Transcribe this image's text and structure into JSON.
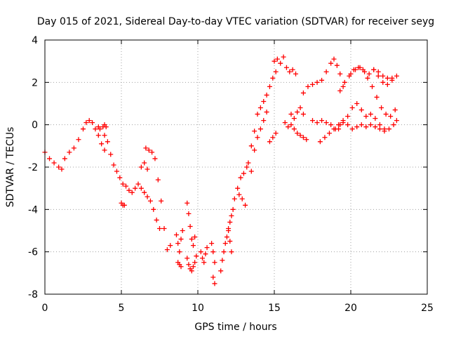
{
  "chart_data": {
    "type": "scatter",
    "title": "Day 015 of 2021, Sidereal Day-to-day VTEC variation (SDTVAR) for receiver seyg",
    "xlabel": "GPS time / hours",
    "ylabel": "SDTVAR / TECUs",
    "xlim": [
      0,
      25
    ],
    "ylim": [
      -8,
      4
    ],
    "xticks": [
      "0",
      "5",
      "10",
      "15",
      "20",
      "25"
    ],
    "yticks": [
      "-8",
      "-6",
      "-4",
      "-2",
      "0",
      "2",
      "4"
    ],
    "grid": true,
    "marker": "plus",
    "color": "#ff0000",
    "series": [
      {
        "x": [
          0.0,
          0.3,
          0.6,
          0.9,
          1.1,
          1.3,
          1.6,
          1.9,
          2.2,
          2.5,
          2.7,
          2.9,
          3.1,
          3.3,
          3.5,
          3.7,
          3.9
        ],
        "y": [
          -1.3,
          -1.6,
          -1.8,
          -2.0,
          -2.1,
          -1.6,
          -1.3,
          -1.1,
          -0.7,
          -0.2,
          0.1,
          0.2,
          0.1,
          -0.2,
          -0.5,
          -0.9,
          -1.2
        ]
      },
      {
        "x": [
          3.5,
          3.6,
          3.8,
          3.9,
          4.0
        ],
        "y": [
          -0.1,
          -0.2,
          -0.1,
          0.0,
          -0.1
        ]
      },
      {
        "x": [
          3.9,
          4.1,
          4.3,
          4.5,
          4.7,
          4.9,
          5.1,
          5.3,
          5.5,
          5.7,
          5.9,
          6.1,
          6.3,
          6.5,
          6.7,
          6.9,
          7.1,
          7.3,
          7.5
        ],
        "y": [
          -0.5,
          -0.8,
          -1.4,
          -1.9,
          -2.2,
          -2.5,
          -2.8,
          -2.9,
          -3.1,
          -3.2,
          -3.0,
          -2.8,
          -3.0,
          -3.2,
          -3.4,
          -3.6,
          -4.0,
          -4.5,
          -4.9
        ]
      },
      {
        "x": [
          5.0,
          5.1,
          5.2
        ],
        "y": [
          -3.7,
          -3.8,
          -3.8
        ]
      },
      {
        "x": [
          6.6,
          6.8,
          7.0,
          7.2,
          7.4,
          7.6
        ],
        "y": [
          -1.1,
          -1.2,
          -1.3,
          -1.6,
          -2.6,
          -3.6
        ]
      },
      {
        "x": [
          6.3,
          6.5,
          6.7
        ],
        "y": [
          -2.0,
          -1.8,
          -2.1
        ]
      },
      {
        "x": [
          7.8,
          8.0,
          8.2
        ],
        "y": [
          -4.9,
          -5.9,
          -5.7
        ]
      },
      {
        "x": [
          8.6,
          8.7,
          8.8,
          8.9,
          9.0
        ],
        "y": [
          -5.2,
          -5.6,
          -6.0,
          -5.4,
          -5.0
        ]
      },
      {
        "x": [
          8.7,
          8.8,
          8.9
        ],
        "y": [
          -6.5,
          -6.6,
          -6.7
        ]
      },
      {
        "x": [
          9.3,
          9.4,
          9.5,
          9.6,
          9.7,
          9.8
        ],
        "y": [
          -3.7,
          -4.2,
          -4.8,
          -5.4,
          -5.7,
          -5.3
        ]
      },
      {
        "x": [
          9.3,
          9.4,
          9.5,
          9.6,
          9.7,
          9.8,
          9.9
        ],
        "y": [
          -6.3,
          -6.6,
          -6.8,
          -6.9,
          -6.7,
          -6.5,
          -6.2
        ]
      },
      {
        "x": [
          10.2,
          10.3,
          10.4,
          10.5,
          10.6
        ],
        "y": [
          -6.0,
          -6.3,
          -6.5,
          -6.1,
          -5.8
        ]
      },
      {
        "x": [
          10.9,
          11.0,
          11.1
        ],
        "y": [
          -5.6,
          -6.0,
          -6.5
        ]
      },
      {
        "x": [
          11.0,
          11.1
        ],
        "y": [
          -7.2,
          -7.5
        ]
      },
      {
        "x": [
          11.5,
          11.6,
          11.7,
          11.8,
          11.9,
          12.0,
          12.1,
          12.2,
          12.3,
          12.4,
          12.6,
          12.8,
          13.0,
          13.2
        ],
        "y": [
          -6.9,
          -6.4,
          -6.0,
          -5.6,
          -5.3,
          -4.9,
          -4.6,
          -4.3,
          -4.0,
          -3.5,
          -3.0,
          -2.5,
          -2.3,
          -2.0
        ]
      },
      {
        "x": [
          12.0,
          12.1,
          12.2
        ],
        "y": [
          -5.0,
          -5.5,
          -6.0
        ]
      },
      {
        "x": [
          12.7,
          12.9,
          13.1
        ],
        "y": [
          -3.3,
          -3.5,
          -3.8
        ]
      },
      {
        "x": [
          13.3,
          13.5,
          13.7,
          13.9,
          14.1,
          14.3,
          14.5,
          14.7,
          14.9,
          15.1
        ],
        "y": [
          -1.8,
          -1.0,
          -0.3,
          0.5,
          0.8,
          1.1,
          1.4,
          1.8,
          2.2,
          2.5
        ]
      },
      {
        "x": [
          13.5,
          13.7,
          13.9,
          14.1,
          14.3,
          14.5
        ],
        "y": [
          -2.2,
          -1.2,
          -0.6,
          -0.2,
          0.2,
          0.6
        ]
      },
      {
        "x": [
          14.7,
          14.9,
          15.1
        ],
        "y": [
          -0.8,
          -0.6,
          -0.4
        ]
      },
      {
        "x": [
          15.0,
          15.2,
          15.4
        ],
        "y": [
          3.0,
          3.1,
          2.9
        ]
      },
      {
        "x": [
          15.6,
          15.8,
          16.0,
          16.2,
          16.4
        ],
        "y": [
          3.2,
          2.7,
          2.5,
          2.6,
          2.4
        ]
      },
      {
        "x": [
          15.7,
          15.9,
          16.1,
          16.3,
          16.5,
          16.7,
          16.9,
          17.1
        ],
        "y": [
          0.1,
          -0.1,
          0.0,
          -0.2,
          -0.4,
          -0.5,
          -0.6,
          -0.7
        ]
      },
      {
        "x": [
          16.1,
          16.3,
          16.5,
          16.7,
          16.9
        ],
        "y": [
          0.5,
          0.3,
          0.6,
          0.8,
          0.5
        ]
      },
      {
        "x": [
          16.9,
          17.2,
          17.5,
          17.8,
          18.1,
          18.4,
          18.7,
          18.9,
          19.1,
          19.3,
          19.5
        ],
        "y": [
          1.5,
          1.8,
          1.9,
          2.0,
          2.1,
          2.5,
          2.9,
          3.1,
          2.8,
          2.4,
          1.8
        ]
      },
      {
        "x": [
          17.5,
          17.8,
          18.1,
          18.4,
          18.7,
          19.0,
          19.3
        ],
        "y": [
          0.2,
          0.1,
          0.2,
          0.1,
          0.0,
          -0.2,
          0.0
        ]
      },
      {
        "x": [
          18.0,
          18.3,
          18.6,
          18.9,
          19.2,
          19.5,
          19.8,
          20.1,
          20.4,
          20.7,
          21.0,
          21.3,
          21.6,
          21.9,
          22.2,
          22.5,
          22.8,
          23.0
        ],
        "y": [
          -0.8,
          -0.6,
          -0.4,
          -0.2,
          0.0,
          0.2,
          0.0,
          -0.2,
          -0.1,
          0.0,
          -0.1,
          0.0,
          -0.1,
          -0.2,
          -0.3,
          -0.2,
          0.0,
          0.2
        ]
      },
      {
        "x": [
          19.3,
          19.6,
          19.9,
          20.2,
          20.5,
          20.8,
          21.1,
          21.4,
          21.7,
          22.0,
          22.3,
          22.6,
          22.9
        ],
        "y": [
          1.6,
          2.0,
          2.3,
          2.6,
          2.7,
          2.6,
          2.2,
          1.8,
          1.3,
          0.8,
          0.5,
          0.4,
          0.7
        ]
      },
      {
        "x": [
          19.2,
          19.5,
          19.8,
          20.1,
          20.4,
          20.7,
          21.0,
          21.3,
          21.6,
          21.9,
          22.2
        ],
        "y": [
          -0.2,
          0.1,
          0.4,
          0.8,
          1.0,
          0.7,
          0.4,
          0.5,
          0.3,
          0.0,
          -0.2
        ]
      },
      {
        "x": [
          20.0,
          20.3,
          20.6,
          20.9,
          21.2,
          21.5,
          21.8,
          22.1,
          22.4,
          22.7,
          23.0
        ],
        "y": [
          2.4,
          2.6,
          2.7,
          2.5,
          2.4,
          2.6,
          2.3,
          2.0,
          1.9,
          2.1,
          2.3
        ]
      },
      {
        "x": [
          21.5,
          21.8,
          22.1,
          22.4,
          22.7
        ],
        "y": [
          2.6,
          2.5,
          2.3,
          2.2,
          2.2
        ]
      }
    ]
  }
}
